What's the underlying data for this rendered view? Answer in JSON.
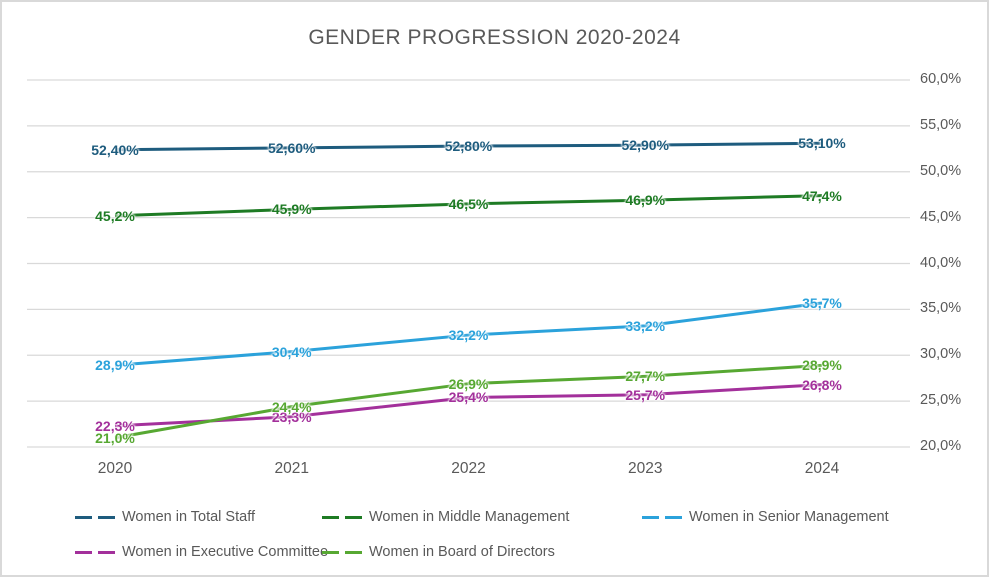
{
  "title": "GENDER PROGRESSION 2020-2024",
  "chart_data": {
    "type": "line",
    "title": "GENDER PROGRESSION 2020-2024",
    "categories": [
      "2020",
      "2021",
      "2022",
      "2023",
      "2024"
    ],
    "series": [
      {
        "name": "Women in Total Staff",
        "color": "#1E5C7E",
        "values": [
          52.4,
          52.6,
          52.8,
          52.9,
          53.1
        ],
        "point_labels": [
          "52,40%",
          "52,60%",
          "52,80%",
          "52,90%",
          "53,10%"
        ]
      },
      {
        "name": "Women in Middle Management",
        "color": "#1E7B24",
        "values": [
          45.2,
          45.9,
          46.5,
          46.9,
          47.4
        ],
        "point_labels": [
          "45,2%",
          "45,9%",
          "46,5%",
          "46,9%",
          "47,4%"
        ]
      },
      {
        "name": "Women in Senior Management",
        "color": "#2BA2DB",
        "values": [
          28.9,
          30.4,
          32.2,
          33.2,
          35.7
        ],
        "point_labels": [
          "28,9%",
          "30,4%",
          "32,2%",
          "33,2%",
          "35,7%"
        ]
      },
      {
        "name": "Women in Executive Committee",
        "color": "#A3309B",
        "values": [
          22.3,
          23.3,
          25.4,
          25.7,
          26.8
        ],
        "point_labels": [
          "22,3%",
          "23,3%",
          "25,4%",
          "25,7%",
          "26,8%"
        ]
      },
      {
        "name": "Women in Board of Directors",
        "color": "#57A832",
        "values": [
          21.0,
          24.4,
          26.9,
          27.7,
          28.9
        ],
        "point_labels": [
          "21,0%",
          "24,4%",
          "26,9%",
          "27,7%",
          "28,9%"
        ]
      }
    ],
    "y_axis": {
      "side": "right",
      "min": 20,
      "max": 60,
      "step": 5,
      "tick_labels": [
        "20,0%",
        "25,0%",
        "30,0%",
        "35,0%",
        "40,0%",
        "45,0%",
        "50,0%",
        "55,0%",
        "60,0%"
      ]
    },
    "grid": true,
    "legend_position": "bottom",
    "legend_rows": [
      [
        0,
        1,
        2
      ],
      [
        3,
        4
      ]
    ]
  },
  "colors": {
    "text_gray": "#595959",
    "grid_gray": "#d9d9d9",
    "background": "#ffffff"
  }
}
